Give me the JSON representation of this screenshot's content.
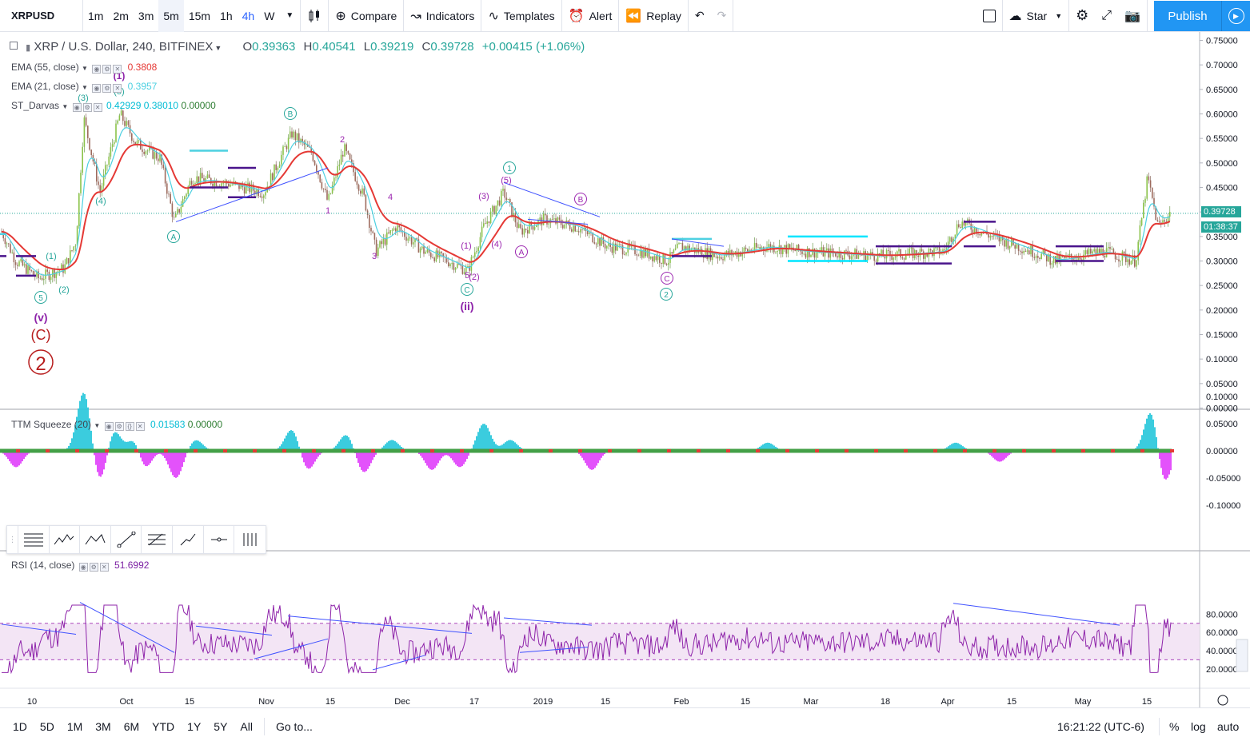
{
  "toolbar": {
    "symbol": "XRPUSD",
    "intervals": [
      "1m",
      "2m",
      "3m",
      "5m",
      "15m",
      "1h",
      "4h",
      "W"
    ],
    "active_interval": "4h",
    "compare": "Compare",
    "indicators": "Indicators",
    "templates": "Templates",
    "alert": "Alert",
    "replay": "Replay",
    "star": "Star",
    "publish": "Publish"
  },
  "main_legend": {
    "title": "XRP / U.S. Dollar, 240, BITFINEX",
    "o_label": "O",
    "o": "0.39363",
    "h_label": "H",
    "h": "0.40541",
    "l_label": "L",
    "l": "0.39219",
    "c_label": "C",
    "c": "0.39728",
    "change": "+0.00415 (+1.06%)"
  },
  "indicators": [
    {
      "name": "EMA (55, close)",
      "value": "0.3808",
      "color": "#e53935"
    },
    {
      "name": "EMA (21, close)",
      "value": "0.3957",
      "color": "#4dd0e1"
    },
    {
      "name": "ST_Darvas",
      "values": [
        "0.42929",
        "0.38010",
        "0.00000"
      ],
      "colors": [
        "#00bcd4",
        "#00bcd4",
        "#2e7d32"
      ]
    }
  ],
  "ttm": {
    "name": "TTM Squeeze (20)",
    "v1": "0.01583",
    "v2": "0.00000"
  },
  "rsi": {
    "name": "RSI (14, close)",
    "value": "51.6992"
  },
  "price_axis": [
    "0.75000",
    "0.70000",
    "0.65000",
    "0.60000",
    "0.55000",
    "0.50000",
    "0.45000",
    "0.40000",
    "0.35000",
    "0.30000",
    "0.25000",
    "0.20000",
    "0.15000",
    "0.10000",
    "0.05000",
    "0.00000"
  ],
  "price_tag": {
    "price": "0.39728",
    "countdown": "01:38:37"
  },
  "ttm_axis": [
    "0.10000",
    "0.05000",
    "0.00000",
    "-0.05000",
    "-0.10000"
  ],
  "rsi_axis": [
    "80.0000",
    "60.0000",
    "40.0000",
    "20.0000"
  ],
  "time_axis": [
    "10",
    "Oct",
    "15",
    "Nov",
    "15",
    "Dec",
    "17",
    "2019",
    "15",
    "Feb",
    "15",
    "Mar",
    "18",
    "Apr",
    "15",
    "May",
    "15"
  ],
  "wave_labels": {
    "big_2": "2",
    "C_red": "(C)",
    "v": "(v)",
    "ii": "(ii)",
    "circ5": "5",
    "circA": "A",
    "circB": "B",
    "circC": "C",
    "circ1": "1",
    "circ2": "2",
    "mA": "A",
    "mB": "B",
    "mC": "C",
    "p1": "(1)",
    "p2": "(2)",
    "p3": "(3)",
    "p4": "(4)",
    "p5": "(5)",
    "n1": "1",
    "n2": "2",
    "n3": "3",
    "n4": "4",
    "n5": "5"
  },
  "bottom": {
    "ranges": [
      "1D",
      "5D",
      "1M",
      "3M",
      "6M",
      "YTD",
      "1Y",
      "5Y",
      "All"
    ],
    "goto": "Go to...",
    "clock": "16:21:22 (UTC-6)",
    "pct": "%",
    "log": "log",
    "auto": "auto"
  }
}
